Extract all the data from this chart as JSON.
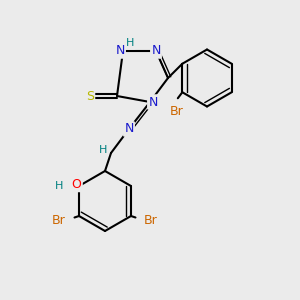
{
  "bg_color": "#ebebeb",
  "bond_color": "#000000",
  "bond_width": 1.5,
  "colors": {
    "N": "#1a1acc",
    "O": "#ff0000",
    "S": "#b8b800",
    "Br": "#cc6600",
    "H": "#008080",
    "C": "#000000"
  },
  "font_size": 9
}
